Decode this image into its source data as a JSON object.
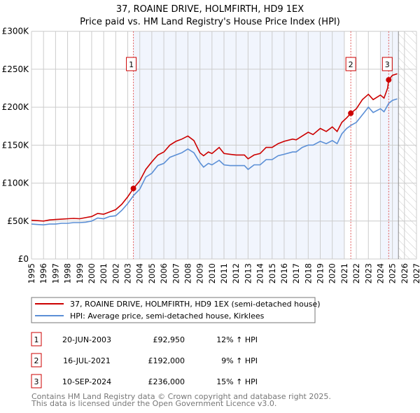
{
  "chart_data": {
    "type": "line",
    "title": "37, ROAINE DRIVE, HOLMFIRTH, HD9 1EX",
    "subtitle": "Price paid vs. HM Land Registry's House Price Index (HPI)",
    "xlabel": "",
    "ylabel": "",
    "xlim": [
      1995,
      2027
    ],
    "ylim": [
      0,
      300000
    ],
    "grid": true,
    "legend_placement": "below",
    "y_ticks": [
      {
        "value": 0,
        "label": "£0"
      },
      {
        "value": 50000,
        "label": "£50K"
      },
      {
        "value": 100000,
        "label": "£100K"
      },
      {
        "value": 150000,
        "label": "£150K"
      },
      {
        "value": 200000,
        "label": "£200K"
      },
      {
        "value": 250000,
        "label": "£250K"
      },
      {
        "value": 300000,
        "label": "£300K"
      }
    ],
    "x_ticks": [
      "1995",
      "1996",
      "1997",
      "1998",
      "1999",
      "2000",
      "2001",
      "2002",
      "2003",
      "2004",
      "2005",
      "2006",
      "2007",
      "2008",
      "2009",
      "2010",
      "2011",
      "2012",
      "2013",
      "2014",
      "2015",
      "2016",
      "2017",
      "2018",
      "2019",
      "2020",
      "2021",
      "2022",
      "2023",
      "2024",
      "2025",
      "2026",
      "2027"
    ],
    "shaded_ranges": [
      [
        2003.47,
        2021.0
      ],
      [
        2024.0,
        2025.5
      ]
    ],
    "hatched_range": [
      2025.5,
      2027
    ],
    "series": [
      {
        "name": "37, ROAINE DRIVE, HOLMFIRTH, HD9 1EX (semi-detached house)",
        "color": "#cc0000",
        "points": [
          [
            1995,
            51000
          ],
          [
            1995.5,
            50500
          ],
          [
            1996,
            50000
          ],
          [
            1996.5,
            51500
          ],
          [
            1997,
            52000
          ],
          [
            1997.5,
            52500
          ],
          [
            1998,
            53000
          ],
          [
            1998.5,
            53500
          ],
          [
            1999,
            53000
          ],
          [
            1999.5,
            54500
          ],
          [
            2000,
            56000
          ],
          [
            2000.5,
            60000
          ],
          [
            2001,
            59000
          ],
          [
            2001.5,
            62000
          ],
          [
            2002,
            65000
          ],
          [
            2002.5,
            72000
          ],
          [
            2003,
            82000
          ],
          [
            2003.47,
            92950
          ],
          [
            2004,
            103000
          ],
          [
            2004.5,
            118000
          ],
          [
            2005,
            128000
          ],
          [
            2005.5,
            137000
          ],
          [
            2006,
            141000
          ],
          [
            2006.5,
            150000
          ],
          [
            2007,
            155000
          ],
          [
            2007.5,
            158000
          ],
          [
            2008,
            162000
          ],
          [
            2008.5,
            156000
          ],
          [
            2009,
            140000
          ],
          [
            2009.3,
            136000
          ],
          [
            2009.7,
            141000
          ],
          [
            2010,
            139000
          ],
          [
            2010.6,
            147000
          ],
          [
            2011,
            139000
          ],
          [
            2011.5,
            138000
          ],
          [
            2012,
            137000
          ],
          [
            2012.7,
            137000
          ],
          [
            2013,
            132000
          ],
          [
            2013.5,
            137000
          ],
          [
            2014,
            139000
          ],
          [
            2014.5,
            147000
          ],
          [
            2015,
            147000
          ],
          [
            2015.5,
            152000
          ],
          [
            2016,
            155000
          ],
          [
            2016.7,
            158000
          ],
          [
            2017,
            157000
          ],
          [
            2017.5,
            162000
          ],
          [
            2018,
            167000
          ],
          [
            2018.4,
            164000
          ],
          [
            2019,
            172000
          ],
          [
            2019.5,
            168000
          ],
          [
            2020,
            174000
          ],
          [
            2020.4,
            168000
          ],
          [
            2020.8,
            180000
          ],
          [
            2021.2,
            186000
          ],
          [
            2021.54,
            192000
          ],
          [
            2022,
            198000
          ],
          [
            2022.5,
            210000
          ],
          [
            2023,
            217000
          ],
          [
            2023.4,
            210000
          ],
          [
            2024,
            216000
          ],
          [
            2024.3,
            212000
          ],
          [
            2024.6,
            225000
          ],
          [
            2024.69,
            236000
          ],
          [
            2025,
            242000
          ],
          [
            2025.4,
            244000
          ]
        ]
      },
      {
        "name": "HPI: Average price, semi-detached house, Kirklees",
        "color": "#5b8fd6",
        "points": [
          [
            1995,
            46000
          ],
          [
            1995.5,
            45500
          ],
          [
            1996,
            45000
          ],
          [
            1996.5,
            46000
          ],
          [
            1997,
            46000
          ],
          [
            1997.5,
            47000
          ],
          [
            1998,
            47000
          ],
          [
            1998.5,
            48000
          ],
          [
            1999,
            48000
          ],
          [
            1999.5,
            48500
          ],
          [
            2000,
            50000
          ],
          [
            2000.5,
            54000
          ],
          [
            2001,
            53000
          ],
          [
            2001.5,
            56000
          ],
          [
            2002,
            57000
          ],
          [
            2002.5,
            64000
          ],
          [
            2003,
            73000
          ],
          [
            2003.5,
            84000
          ],
          [
            2004,
            92000
          ],
          [
            2004.5,
            108000
          ],
          [
            2005,
            113000
          ],
          [
            2005.5,
            123000
          ],
          [
            2006,
            126000
          ],
          [
            2006.5,
            134000
          ],
          [
            2007,
            137000
          ],
          [
            2007.5,
            140000
          ],
          [
            2008,
            145000
          ],
          [
            2008.5,
            140000
          ],
          [
            2009,
            127000
          ],
          [
            2009.3,
            121000
          ],
          [
            2009.7,
            126000
          ],
          [
            2010,
            124000
          ],
          [
            2010.6,
            130000
          ],
          [
            2011,
            124000
          ],
          [
            2011.5,
            123000
          ],
          [
            2012,
            123000
          ],
          [
            2012.7,
            123000
          ],
          [
            2013,
            118000
          ],
          [
            2013.5,
            124000
          ],
          [
            2014,
            124000
          ],
          [
            2014.5,
            131000
          ],
          [
            2015,
            131000
          ],
          [
            2015.5,
            136000
          ],
          [
            2016,
            138000
          ],
          [
            2016.7,
            141000
          ],
          [
            2017,
            141000
          ],
          [
            2017.5,
            147000
          ],
          [
            2018,
            150000
          ],
          [
            2018.4,
            150000
          ],
          [
            2019,
            155000
          ],
          [
            2019.5,
            152000
          ],
          [
            2020,
            156000
          ],
          [
            2020.4,
            152000
          ],
          [
            2020.8,
            165000
          ],
          [
            2021.2,
            172000
          ],
          [
            2021.54,
            176000
          ],
          [
            2022,
            180000
          ],
          [
            2022.5,
            190000
          ],
          [
            2023,
            200000
          ],
          [
            2023.4,
            193000
          ],
          [
            2024,
            198000
          ],
          [
            2024.3,
            194000
          ],
          [
            2024.69,
            205000
          ],
          [
            2025,
            209000
          ],
          [
            2025.4,
            211000
          ]
        ]
      }
    ],
    "sales": [
      {
        "num": "1",
        "year": 2003.47,
        "value": 92950,
        "date": "20-JUN-2003",
        "price": "£92,950",
        "hpi": "12% ↑ HPI"
      },
      {
        "num": "2",
        "year": 2021.54,
        "value": 192000,
        "date": "16-JUL-2021",
        "price": "£192,000",
        "hpi": "9% ↑ HPI"
      },
      {
        "num": "3",
        "year": 2024.69,
        "value": 236000,
        "date": "10-SEP-2024",
        "price": "£236,000",
        "hpi": "15% ↑ HPI"
      }
    ]
  },
  "footer": {
    "line1": "Contains HM Land Registry data © Crown copyright and database right 2025.",
    "line2": "This data is licensed under the Open Government Licence v3.0."
  }
}
